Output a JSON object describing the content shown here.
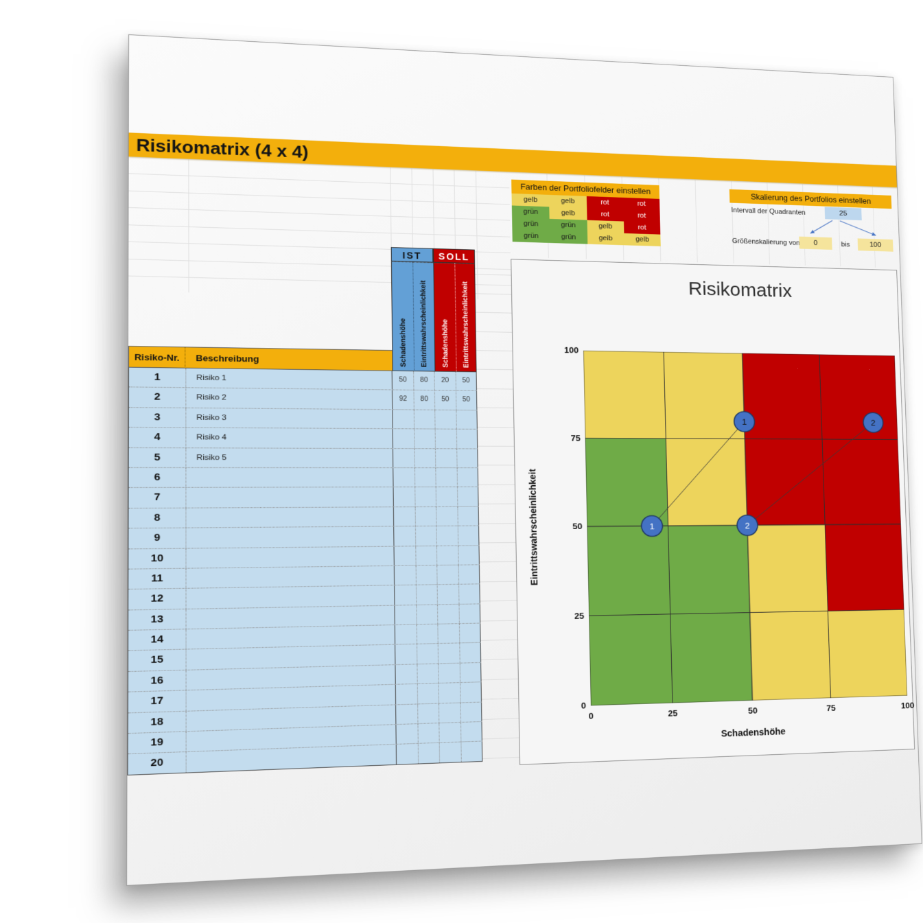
{
  "sheet": {
    "title": "Risikomatrix (4 x 4)"
  },
  "palette": {
    "gold": "#F3AF0C",
    "gelb": "#EDD45C",
    "gruen": "#6FAB47",
    "rot": "#C00000",
    "ist_blue": "#63A0D6",
    "row_blue": "#C3DCEE",
    "cell_blue": "#BDD7EE",
    "cell_yellow": "#F5E49C",
    "bubble_blue": "#4472C4",
    "bubble_border": "#1F3864",
    "arrow_blue": "#4472C4"
  },
  "colors_panel": {
    "header": "Farben der Portfoliofelder einstellen",
    "rows": [
      [
        "gelb",
        "gelb",
        "rot",
        "rot"
      ],
      [
        "grün",
        "gelb",
        "rot",
        "rot"
      ],
      [
        "grün",
        "grün",
        "gelb",
        "rot"
      ],
      [
        "grün",
        "grün",
        "gelb",
        "gelb"
      ]
    ]
  },
  "scaling_panel": {
    "header": "Skalierung des Portfolios einstellen",
    "interval_label": "Intervall der Quadranten",
    "interval_value": "25",
    "size_label": "Größenskalierung von",
    "from_value": "0",
    "bis_label": "bis",
    "to_value": "100"
  },
  "risk_table": {
    "ist_header": "IST",
    "soll_header": "SOLL",
    "ist_columns": [
      "Schadenshöhe",
      "Eintrittswahrscheinlichkeit"
    ],
    "soll_columns": [
      "Schadenshöhe",
      "Eintrittswahrscheinlichkeit"
    ],
    "nr_header": "Risiko-Nr.",
    "desc_header": "Beschreibung",
    "rows": [
      {
        "nr": "1",
        "desc": "Risiko 1",
        "ist_s": "50",
        "ist_e": "80",
        "soll_s": "20",
        "soll_e": "50"
      },
      {
        "nr": "2",
        "desc": "Risiko 2",
        "ist_s": "92",
        "ist_e": "80",
        "soll_s": "50",
        "soll_e": "50"
      },
      {
        "nr": "3",
        "desc": "Risiko 3",
        "ist_s": "",
        "ist_e": "",
        "soll_s": "",
        "soll_e": ""
      },
      {
        "nr": "4",
        "desc": "Risiko 4",
        "ist_s": "",
        "ist_e": "",
        "soll_s": "",
        "soll_e": ""
      },
      {
        "nr": "5",
        "desc": "Risiko 5",
        "ist_s": "",
        "ist_e": "",
        "soll_s": "",
        "soll_e": ""
      },
      {
        "nr": "6",
        "desc": "",
        "ist_s": "",
        "ist_e": "",
        "soll_s": "",
        "soll_e": ""
      },
      {
        "nr": "7",
        "desc": "",
        "ist_s": "",
        "ist_e": "",
        "soll_s": "",
        "soll_e": ""
      },
      {
        "nr": "8",
        "desc": "",
        "ist_s": "",
        "ist_e": "",
        "soll_s": "",
        "soll_e": ""
      },
      {
        "nr": "9",
        "desc": "",
        "ist_s": "",
        "ist_e": "",
        "soll_s": "",
        "soll_e": ""
      },
      {
        "nr": "10",
        "desc": "",
        "ist_s": "",
        "ist_e": "",
        "soll_s": "",
        "soll_e": ""
      },
      {
        "nr": "11",
        "desc": "",
        "ist_s": "",
        "ist_e": "",
        "soll_s": "",
        "soll_e": ""
      },
      {
        "nr": "12",
        "desc": "",
        "ist_s": "",
        "ist_e": "",
        "soll_s": "",
        "soll_e": ""
      },
      {
        "nr": "13",
        "desc": "",
        "ist_s": "",
        "ist_e": "",
        "soll_s": "",
        "soll_e": ""
      },
      {
        "nr": "14",
        "desc": "",
        "ist_s": "",
        "ist_e": "",
        "soll_s": "",
        "soll_e": ""
      },
      {
        "nr": "15",
        "desc": "",
        "ist_s": "",
        "ist_e": "",
        "soll_s": "",
        "soll_e": ""
      },
      {
        "nr": "16",
        "desc": "",
        "ist_s": "",
        "ist_e": "",
        "soll_s": "",
        "soll_e": ""
      },
      {
        "nr": "17",
        "desc": "",
        "ist_s": "",
        "ist_e": "",
        "soll_s": "",
        "soll_e": ""
      },
      {
        "nr": "18",
        "desc": "",
        "ist_s": "",
        "ist_e": "",
        "soll_s": "",
        "soll_e": ""
      },
      {
        "nr": "19",
        "desc": "",
        "ist_s": "",
        "ist_e": "",
        "soll_s": "",
        "soll_e": ""
      },
      {
        "nr": "20",
        "desc": "",
        "ist_s": "",
        "ist_e": "",
        "soll_s": "",
        "soll_e": ""
      }
    ]
  },
  "chart_data": {
    "type": "scatter",
    "title": "Risikomatrix",
    "xlabel": "Schadenshöhe",
    "ylabel": "Eintrittswahrscheinlichkeit",
    "xlim": [
      0,
      100
    ],
    "ylim": [
      0,
      100
    ],
    "xticks": [
      0,
      25,
      50,
      75,
      100
    ],
    "yticks": [
      0,
      25,
      50,
      75,
      100
    ],
    "grid": "quadrant-4x4",
    "legend": "none",
    "zone_rows_top_to_bottom": [
      [
        "gelb",
        "gelb",
        "rot",
        "rot"
      ],
      [
        "grün",
        "gelb",
        "rot",
        "rot"
      ],
      [
        "grün",
        "grün",
        "gelb",
        "rot"
      ],
      [
        "grün",
        "grün",
        "gelb",
        "gelb"
      ]
    ],
    "series": [
      {
        "name": "IST",
        "label_color": "#111111",
        "points": [
          {
            "label": "1",
            "x": 50,
            "y": 80
          },
          {
            "label": "2",
            "x": 92,
            "y": 80
          }
        ]
      },
      {
        "name": "SOLL",
        "label_color": "#ffffff",
        "points": [
          {
            "label": "1",
            "x": 20,
            "y": 50
          },
          {
            "label": "2",
            "x": 50,
            "y": 50
          }
        ]
      }
    ],
    "connections": [
      {
        "label": "1",
        "from": {
          "x": 20,
          "y": 50
        },
        "to": {
          "x": 50,
          "y": 80
        }
      },
      {
        "label": "2",
        "from": {
          "x": 50,
          "y": 50
        },
        "to": {
          "x": 92,
          "y": 80
        }
      }
    ]
  }
}
